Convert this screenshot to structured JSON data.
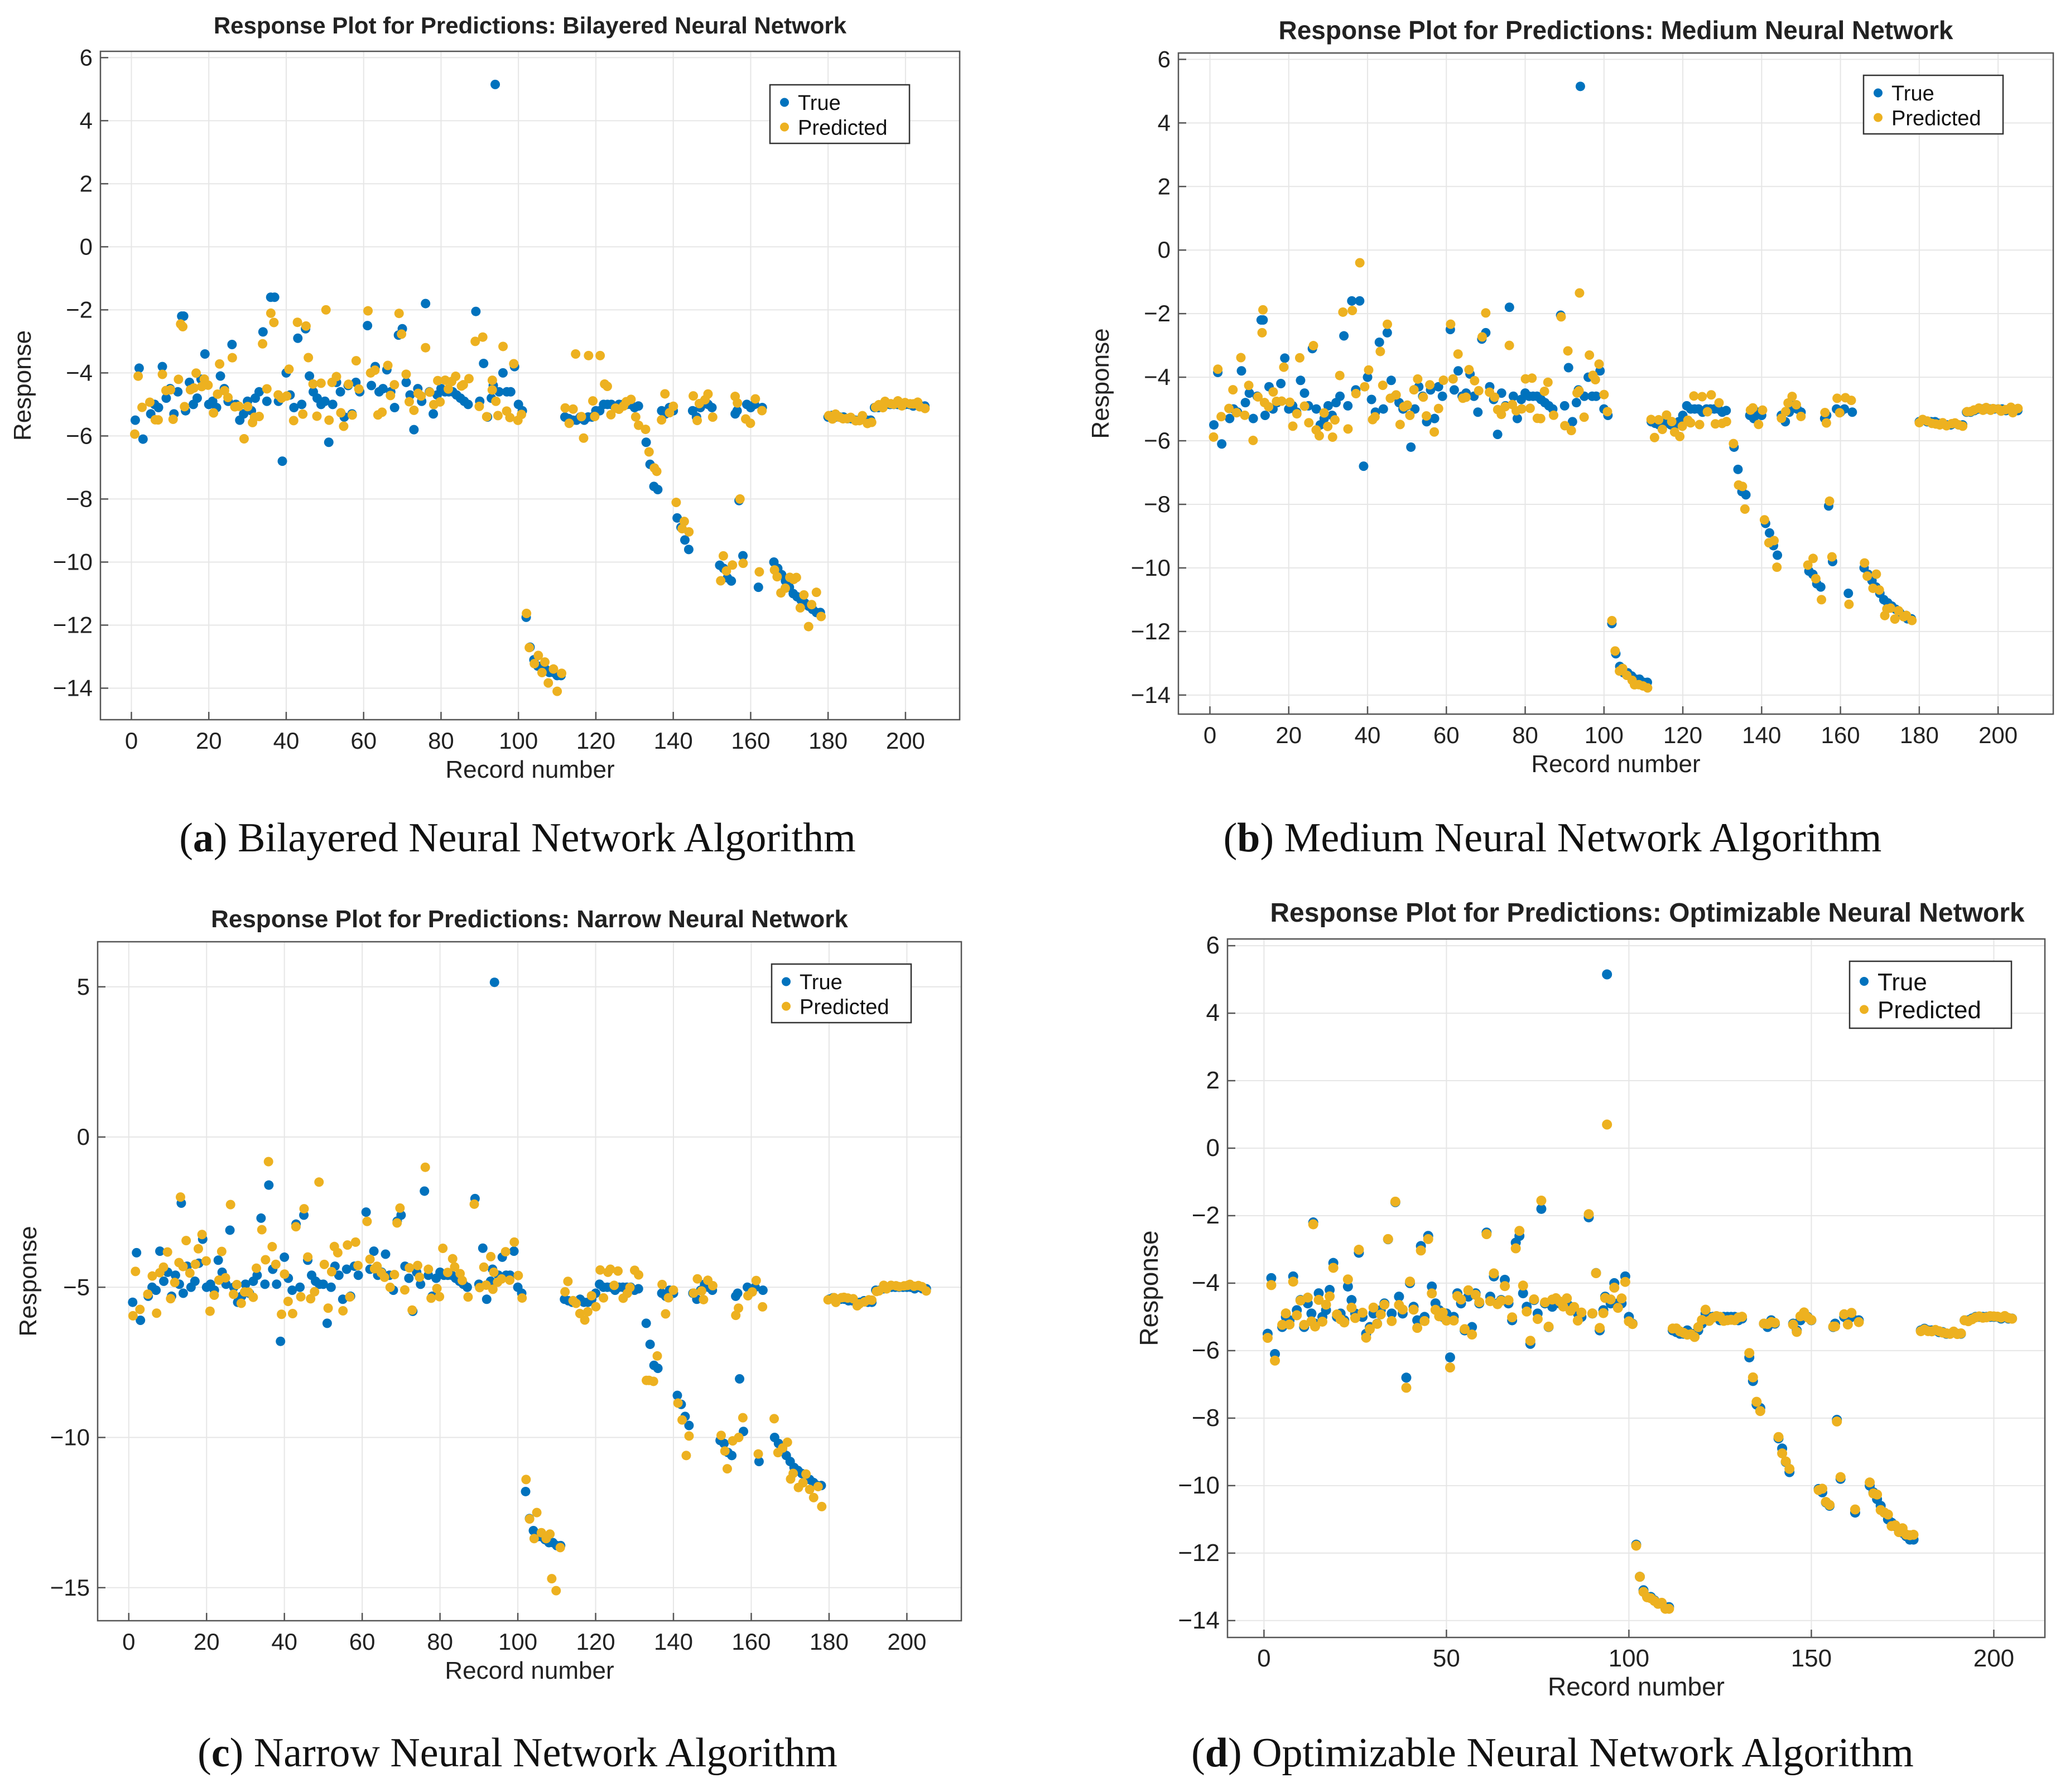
{
  "colors": {
    "true": "#0072BD",
    "predicted": "#EDB120",
    "grid": "#e6e6e6",
    "axis": "#555555"
  },
  "chart_data": [
    {
      "type": "scatter",
      "title": "Response Plot for Predictions: Bilayered Neural Network",
      "xlabel": "Record number",
      "ylabel": "Response",
      "xlim": [
        -8,
        214
      ],
      "ylim": [
        -15,
        6.2
      ],
      "xticks": [
        0,
        20,
        40,
        60,
        80,
        100,
        120,
        140,
        160,
        180,
        200
      ],
      "yticks": [
        6,
        4,
        2,
        0,
        -2,
        -4,
        -6,
        -8,
        -10,
        -12,
        -14
      ],
      "xtick_labels": [
        "0",
        "20",
        "40",
        "60",
        "80",
        "100",
        "120",
        "140",
        "160",
        "180",
        "200"
      ],
      "ytick_labels": [
        "6",
        "4",
        "2",
        "0",
        "−2",
        "−4",
        "−6",
        "−8",
        "−10",
        "−12",
        "−14"
      ],
      "legend": [
        "True",
        "Predicted"
      ],
      "legend_position": "top-right",
      "caption_letter": "a",
      "caption_text": "Bilayered Neural Network Algorithm",
      "noise_seed": 11,
      "pred_noise": [
        0.85,
        0.35,
        0.65,
        0.12,
        0.25
      ],
      "special": [
        {
          "x": 94,
          "true": 5.15,
          "pred": -4.9
        },
        {
          "x": 13,
          "true": -2.2,
          "pred": -2.45
        },
        {
          "x": 37,
          "true": -1.6,
          "pred": -2.4
        },
        {
          "x": 39,
          "true": -6.8,
          "pred": -4.8
        },
        {
          "x": 50,
          "true": -4.9,
          "pred": -2.0
        },
        {
          "x": 51,
          "true": -6.2,
          "pred": -5.5
        },
        {
          "x": 76,
          "true": -1.8,
          "pred": -3.2
        },
        {
          "x": 89,
          "true": -2.05,
          "pred": -3.0
        },
        {
          "x": 110,
          "true": -13.6,
          "pred": -14.1
        },
        {
          "x": 115,
          "true": -5.5,
          "pred": -3.4
        },
        {
          "x": 118,
          "true": -5.4,
          "pred": -3.45
        },
        {
          "x": 121,
          "true": -5.2,
          "pred": -3.45
        },
        {
          "x": 157,
          "true": -8.05,
          "pred": -8.0
        }
      ]
    },
    {
      "type": "scatter",
      "title": "Response Plot for Predictions: Medium Neural Network",
      "xlabel": "Record number",
      "ylabel": "Response",
      "xlim": [
        -8,
        214
      ],
      "ylim": [
        -14.6,
        6.2
      ],
      "xticks": [
        0,
        20,
        40,
        60,
        80,
        100,
        120,
        140,
        160,
        180,
        200
      ],
      "yticks": [
        6,
        4,
        2,
        0,
        -2,
        -4,
        -6,
        -8,
        -10,
        -12,
        -14
      ],
      "xtick_labels": [
        "0",
        "20",
        "40",
        "60",
        "80",
        "100",
        "120",
        "140",
        "160",
        "180",
        "200"
      ],
      "ytick_labels": [
        "6",
        "4",
        "2",
        "0",
        "−2",
        "−4",
        "−6",
        "−8",
        "−10",
        "−12",
        "−14"
      ],
      "legend": [
        "True",
        "Predicted"
      ],
      "legend_position": "top-right",
      "caption_letter": "b",
      "caption_text": "Medium Neural Network Algorithm",
      "noise_seed": 23,
      "pred_noise": [
        0.75,
        0.2,
        0.5,
        0.08,
        0.2
      ],
      "special": [
        {
          "x": 94,
          "true": 5.15,
          "pred": -1.35
        },
        {
          "x": 38,
          "true": -1.6,
          "pred": -0.4
        },
        {
          "x": 39,
          "true": -6.8,
          "pred": -4.3
        },
        {
          "x": 13,
          "true": -2.2,
          "pred": -2.6
        },
        {
          "x": 51,
          "true": -6.2,
          "pred": -5.2
        },
        {
          "x": 76,
          "true": -1.8,
          "pred": -3.0
        },
        {
          "x": 89,
          "true": -2.05,
          "pred": -2.1
        },
        {
          "x": 157,
          "true": -8.05,
          "pred": -7.9
        }
      ]
    },
    {
      "type": "scatter",
      "title": "Response Plot for Predictions: Narrow Neural Network",
      "xlabel": "Record number",
      "ylabel": "Response",
      "xlim": [
        -8,
        214
      ],
      "ylim": [
        -16.1,
        6.5
      ],
      "xticks": [
        0,
        20,
        40,
        60,
        80,
        100,
        120,
        140,
        160,
        180,
        200
      ],
      "yticks": [
        5,
        0,
        -5,
        -10,
        -15
      ],
      "xtick_labels": [
        "0",
        "20",
        "40",
        "60",
        "80",
        "100",
        "120",
        "140",
        "160",
        "180",
        "200"
      ],
      "ytick_labels": [
        "5",
        "0",
        "−5",
        "−10",
        "−15"
      ],
      "legend": [
        "True",
        "Predicted"
      ],
      "legend_position": "top-right",
      "caption_letter": "c",
      "caption_text": "Narrow Neural Network Algorithm",
      "noise_seed": 37,
      "pred_noise": [
        0.9,
        0.3,
        0.7,
        0.12,
        0.3
      ],
      "special": [
        {
          "x": 94,
          "true": 5.15,
          "pred": -4.5
        },
        {
          "x": 49,
          "true": -4.9,
          "pred": -1.5
        },
        {
          "x": 39,
          "true": -6.8,
          "pred": -5.9
        },
        {
          "x": 110,
          "true": -13.6,
          "pred": -15.1
        },
        {
          "x": 109,
          "true": -13.5,
          "pred": -14.7
        },
        {
          "x": 105,
          "true": -13.3,
          "pred": -12.5
        },
        {
          "x": 102,
          "true": -11.8,
          "pred": -11.4
        },
        {
          "x": 133,
          "true": -6.2,
          "pred": -8.1
        },
        {
          "x": 134,
          "true": -6.9,
          "pred": -8.1
        },
        {
          "x": 143,
          "true": -9.3,
          "pred": -10.6
        },
        {
          "x": 157,
          "true": -8.05,
          "pred": -10.0
        },
        {
          "x": 178,
          "true": -11.6,
          "pred": -12.3
        },
        {
          "x": 123,
          "true": -5.0,
          "pred": -4.5
        },
        {
          "x": 124,
          "true": -5.0,
          "pred": -4.4
        }
      ]
    },
    {
      "type": "scatter",
      "title": "Response Plot for Predictions: Optimizable Neural Network",
      "xlabel": "Record number",
      "ylabel": "Response",
      "xlim": [
        -10,
        214
      ],
      "ylim": [
        -14.5,
        6.2
      ],
      "xticks": [
        0,
        50,
        100,
        150,
        200
      ],
      "yticks": [
        6,
        4,
        2,
        0,
        -2,
        -4,
        -6,
        -8,
        -10,
        -12,
        -14
      ],
      "xtick_labels": [
        "0",
        "50",
        "100",
        "150",
        "200"
      ],
      "ytick_labels": [
        "6",
        "4",
        "2",
        "0",
        "−2",
        "−4",
        "−6",
        "−8",
        "−10",
        "−12",
        "−14"
      ],
      "legend": [
        "True",
        "Predicted"
      ],
      "legend_position": "top-right",
      "caption_letter": "d",
      "caption_text": "Optimizable Neural Network Algorithm",
      "noise_seed": 53,
      "pred_noise": [
        0.25,
        0.06,
        0.15,
        0.03,
        0.06
      ],
      "special": [
        {
          "x": 94,
          "true": 5.15,
          "pred": 0.7
        },
        {
          "x": 39,
          "true": -6.8,
          "pred": -7.1
        },
        {
          "x": 4,
          "true": -6.1,
          "pred": -6.5
        },
        {
          "x": 51,
          "true": -6.2,
          "pred": -6.5
        },
        {
          "x": 157,
          "true": -8.05,
          "pred": -8.1
        }
      ]
    }
  ],
  "true_series": {
    "comment_free_values": true,
    "x_start": 1,
    "values": [
      -5.5,
      -3.85,
      -6.1,
      -5.3,
      -5.0,
      -5.1,
      -3.8,
      -4.8,
      -4.5,
      -5.3,
      -4.6,
      -4.9,
      -2.2,
      -5.2,
      -4.3,
      -5.0,
      -4.8,
      -4.2,
      -3.4,
      -5.0,
      -4.9,
      -5.1,
      -4.1,
      -4.5,
      -4.9,
      -3.1,
      -5.0,
      -5.5,
      -5.3,
      -4.9,
      -5.2,
      -4.8,
      -4.6,
      -2.7,
      -4.9,
      -1.6,
      -4.4,
      -4.9,
      -6.8,
      -4.0,
      -4.7,
      -5.1,
      -2.9,
      -5.0,
      -2.6,
      -4.1,
      -4.6,
      -4.8,
      -5.0,
      -4.9,
      -6.2,
      -5.0,
      -4.3,
      -4.6,
      -5.4,
      -4.4,
      -5.3,
      -4.3,
      -4.6,
      -2.5,
      -4.4,
      -3.8,
      -4.6,
      -4.5,
      -3.9,
      -4.6,
      -5.1,
      -2.8,
      -2.6,
      -4.3,
      -4.7,
      -5.8,
      -4.5,
      -4.9,
      -1.8,
      -4.6,
      -5.3,
      -4.7,
      -4.5,
      -4.6,
      -4.6,
      -4.6,
      -4.7,
      -4.8,
      -4.9,
      -5.0,
      -2.05,
      -4.9,
      -3.7,
      -5.4,
      -4.8,
      -4.4,
      5.15,
      -4.6,
      -4.0,
      -4.6,
      -4.6,
      -3.8,
      -5.0,
      -5.2,
      -11.75,
      -12.7,
      -13.1,
      -13.3,
      -13.3,
      -13.4,
      -13.5,
      -13.5,
      -13.6,
      -13.6,
      -5.4,
      -5.45,
      -5.5,
      -5.5,
      -5.4,
      -5.5,
      -5.5,
      -5.4,
      -5.2,
      -4.9,
      -5.0,
      -5.0,
      -5.0,
      -5.1,
      -5.0,
      -5.0,
      -5.0,
      -5.0,
      -5.1,
      -5.05,
      -6.2,
      -6.9,
      -7.6,
      -7.7,
      -5.2,
      -5.3,
      -5.1,
      -5.2,
      -8.6,
      -8.9,
      -9.3,
      -9.6,
      -5.2,
      -5.4,
      -5.1,
      -4.9,
      -5.0,
      -5.1,
      -10.1,
      -10.2,
      -10.5,
      -10.6,
      -5.3,
      -5.2,
      -8.05,
      -9.8,
      -5.0,
      -5.1,
      -5.0,
      -10.8,
      -5.1,
      -10.0,
      -10.2,
      -10.4,
      -10.6,
      -10.8,
      -11.0,
      -11.1,
      -11.2,
      -11.3,
      -11.4,
      -11.5,
      -11.6,
      -11.6,
      -5.4,
      -5.35,
      -5.4,
      -5.4,
      -5.4,
      -5.45,
      -5.45,
      -5.5,
      -5.5,
      -5.45,
      -5.5,
      -5.5,
      -5.1,
      -5.1,
      -5.05,
      -5.0,
      -5.0,
      -5.0,
      -5.0,
      -5.0,
      -5.0,
      -5.0,
      -5.05,
      -5.0,
      -5.05,
      -5.05
    ],
    "x_values": [
      1,
      2,
      3,
      5,
      6,
      7,
      8,
      9,
      10,
      11,
      12,
      13,
      13.5,
      14,
      15,
      16,
      17,
      18,
      19,
      20,
      21,
      22,
      23,
      24,
      25,
      26,
      27,
      28,
      29,
      30,
      31,
      32,
      33,
      34,
      35,
      36,
      37,
      38,
      39,
      40,
      41,
      42,
      43,
      44,
      45,
      46,
      47,
      48,
      49,
      50,
      51,
      52,
      53,
      54,
      55,
      56,
      57,
      58,
      59,
      61,
      62,
      63,
      64,
      65,
      66,
      67,
      68,
      69,
      70,
      71,
      72,
      73,
      74,
      75,
      76,
      77,
      78,
      79,
      80,
      81,
      82,
      83,
      84,
      85,
      86,
      87,
      89,
      90,
      91,
      92,
      93,
      93.5,
      94,
      95,
      96,
      97,
      98,
      99,
      100,
      101,
      102,
      103,
      104,
      105,
      106,
      107,
      108,
      109,
      110,
      111,
      112,
      113,
      114,
      115,
      116,
      117,
      118,
      119,
      120,
      121,
      122,
      123,
      124,
      125,
      126,
      127,
      128,
      129,
      130,
      131,
      133,
      134,
      135,
      136,
      137,
      138,
      139,
      140,
      141,
      142,
      143,
      144,
      145,
      146,
      147,
      148,
      149,
      150,
      152,
      153,
      154,
      155,
      156,
      156.5,
      157,
      158,
      159,
      160,
      161,
      162,
      163,
      166,
      167,
      168,
      169,
      170,
      171,
      172,
      173,
      174,
      175,
      176,
      177,
      178,
      180,
      181,
      182,
      183,
      184,
      185,
      186,
      187,
      188,
      189,
      190,
      191,
      192,
      193,
      194,
      195,
      196,
      197,
      198,
      199,
      200,
      201,
      202,
      203,
      204,
      205
    ]
  }
}
